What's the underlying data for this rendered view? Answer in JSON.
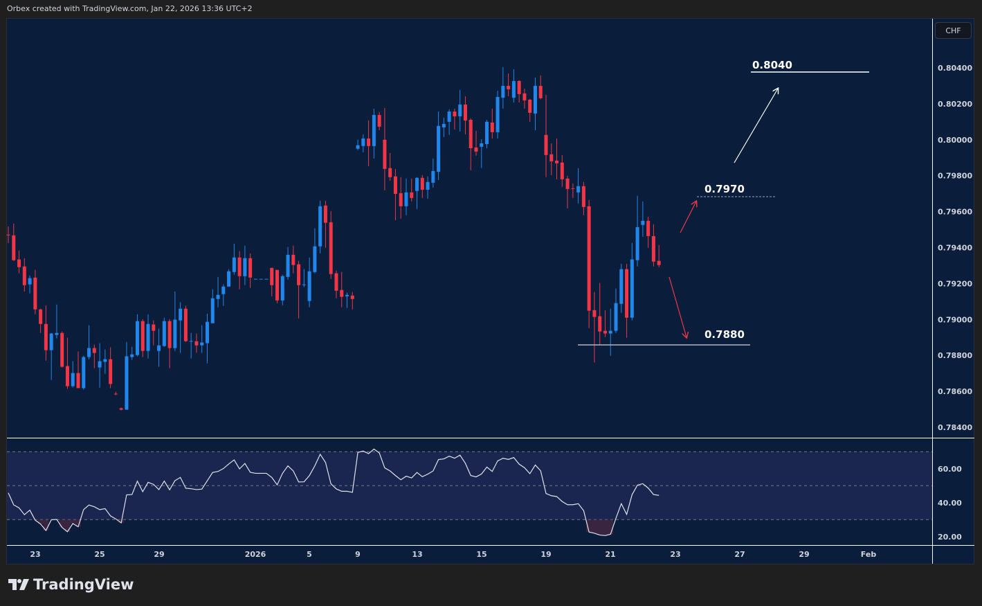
{
  "header": {
    "credit": "Orbex created with TradingView.com, Jan 22, 2026 13:36 UTC+2"
  },
  "currency_badge": "CHF",
  "logo": {
    "text": "TradingView"
  },
  "colors": {
    "up": "#2187ec",
    "down": "#f23645",
    "background": "#0a1e3b",
    "rsi_line": "#e0e3eb",
    "rsi_band": "#1a2650"
  },
  "chart_data": [
    {
      "type": "candlestick",
      "yaxis_ticks": [
        "0.80400",
        "0.80200",
        "0.80000",
        "0.79800",
        "0.79600",
        "0.79400",
        "0.79200",
        "0.79000",
        "0.78800",
        "0.78600",
        "0.78400"
      ],
      "ylim": [
        0.7834,
        0.8062
      ],
      "xaxis_ticks": [
        "23",
        "25",
        "29",
        "2026",
        "5",
        "9",
        "13",
        "15",
        "19",
        "21",
        "23",
        "27",
        "29",
        "Feb"
      ],
      "candles_ohlc": [
        [
          0.79472,
          0.79518,
          0.79426,
          0.7947
        ],
        [
          0.79468,
          0.79534,
          0.79326,
          0.7933
        ],
        [
          0.79334,
          0.79384,
          0.79257,
          0.79291
        ],
        [
          0.79295,
          0.79341,
          0.79156,
          0.79191
        ],
        [
          0.79195,
          0.79245,
          0.79145,
          0.7923
        ],
        [
          0.79233,
          0.79276,
          0.79029,
          0.79056
        ],
        [
          0.79056,
          0.7906,
          0.78925,
          0.78975
        ],
        [
          0.78975,
          0.79079,
          0.78771,
          0.78829
        ],
        [
          0.78829,
          0.78925,
          0.78664,
          0.78922
        ],
        [
          0.78914,
          0.79083,
          0.78895,
          0.78925
        ],
        [
          0.78925,
          0.78933,
          0.78733,
          0.78737
        ],
        [
          0.78741,
          0.78899,
          0.78614,
          0.78629
        ],
        [
          0.78629,
          0.78768,
          0.78621,
          0.78702
        ],
        [
          0.78702,
          0.78822,
          0.78618,
          0.78618
        ],
        [
          0.78618,
          0.78798,
          0.7861,
          0.78791
        ],
        [
          0.78791,
          0.78968,
          0.78779,
          0.78841
        ],
        [
          0.78841,
          0.7886,
          0.78729,
          0.78814
        ],
        [
          0.78733,
          0.78868,
          0.78621,
          0.78768
        ],
        [
          0.78764,
          0.78833,
          0.78698,
          0.78779
        ],
        [
          0.78779,
          0.78845,
          0.78618,
          0.78641
        ],
        [
          0.78587,
          0.78598,
          0.78579,
          0.78585
        ],
        [
          0.78506,
          0.7851,
          0.78494,
          0.78498
        ],
        [
          0.78498,
          0.78875,
          0.78498,
          0.78795
        ],
        [
          0.78791,
          0.78848,
          0.78775,
          0.78806
        ],
        [
          0.78802,
          0.79029,
          0.78795,
          0.78991
        ],
        [
          0.78991,
          0.79002,
          0.78791,
          0.78825
        ],
        [
          0.78825,
          0.79029,
          0.78783,
          0.78975
        ],
        [
          0.78972,
          0.78995,
          0.78856,
          0.78937
        ],
        [
          0.78825,
          0.78949,
          0.78737,
          0.78856
        ],
        [
          0.78852,
          0.7901,
          0.78848,
          0.78991
        ],
        [
          0.78991,
          0.79002,
          0.78729,
          0.78841
        ],
        [
          0.78841,
          0.79156,
          0.78825,
          0.78999
        ],
        [
          0.78995,
          0.79095,
          0.78814,
          0.7906
        ],
        [
          0.7906,
          0.79076,
          0.78875,
          0.78879
        ],
        [
          0.78879,
          0.78925,
          0.78783,
          0.78881
        ],
        [
          0.78879,
          0.78922,
          0.78814,
          0.78856
        ],
        [
          0.78856,
          0.78968,
          0.78814,
          0.78872
        ],
        [
          0.78868,
          0.79033,
          0.78756,
          0.78987
        ],
        [
          0.78979,
          0.79168,
          0.78979,
          0.79118
        ],
        [
          0.79114,
          0.79237,
          0.79068,
          0.79137
        ],
        [
          0.79141,
          0.79195,
          0.79076,
          0.79183
        ],
        [
          0.79183,
          0.7928,
          0.79183,
          0.79268
        ],
        [
          0.79264,
          0.79422,
          0.79249,
          0.79345
        ],
        [
          0.79345,
          0.7938,
          0.79168,
          0.79241
        ],
        [
          0.79241,
          0.79411,
          0.79191,
          0.79341
        ],
        [
          0.79341,
          0.79368,
          0.79176,
          0.79233
        ],
        [
          0.79226,
          0.79226,
          0.79226,
          0.79226
        ],
        [
          0.79226,
          0.79226,
          0.79226,
          0.79226
        ],
        [
          0.79226,
          0.79226,
          0.79226,
          0.79226
        ],
        [
          0.79287,
          0.79287,
          0.79129,
          0.79191
        ],
        [
          0.79276,
          0.79276,
          0.79091,
          0.79106
        ],
        [
          0.79106,
          0.79249,
          0.79079,
          0.79241
        ],
        [
          0.79237,
          0.79403,
          0.79222,
          0.7936
        ],
        [
          0.7936,
          0.79411,
          0.79257,
          0.79303
        ],
        [
          0.79307,
          0.79326,
          0.79006,
          0.79191
        ],
        [
          0.79191,
          0.7928,
          0.7918,
          0.79195
        ],
        [
          0.79103,
          0.79345,
          0.79068,
          0.79268
        ],
        [
          0.79264,
          0.79507,
          0.79257,
          0.79407
        ],
        [
          0.79407,
          0.79661,
          0.79368,
          0.7963
        ],
        [
          0.79634,
          0.79661,
          0.79399,
          0.79538
        ],
        [
          0.79541,
          0.79603,
          0.79226,
          0.79253
        ],
        [
          0.79257,
          0.79272,
          0.79118,
          0.7916
        ],
        [
          0.79164,
          0.79264,
          0.79068,
          0.79126
        ],
        [
          0.79129,
          0.79149,
          0.79064,
          0.79137
        ],
        [
          0.79133,
          0.79153,
          0.79056,
          0.79114
        ],
        [
          0.7995,
          0.8,
          0.79942,
          0.79969
        ],
        [
          0.79965,
          0.8003,
          0.7993,
          0.80007
        ],
        [
          0.80007,
          0.80107,
          0.79853,
          0.79965
        ],
        [
          0.79965,
          0.80173,
          0.79896,
          0.80138
        ],
        [
          0.80138,
          0.80154,
          0.80053,
          0.80073
        ],
        [
          0.8,
          0.80177,
          0.79719,
          0.79838
        ],
        [
          0.79842,
          0.79926,
          0.79772,
          0.79792
        ],
        [
          0.79796,
          0.79838,
          0.79553,
          0.79699
        ],
        [
          0.79703,
          0.79792,
          0.79561,
          0.7963
        ],
        [
          0.7963,
          0.79784,
          0.7958,
          0.79707
        ],
        [
          0.79707,
          0.79784,
          0.79657,
          0.79676
        ],
        [
          0.79715,
          0.79792,
          0.79615,
          0.79788
        ],
        [
          0.79788,
          0.79803,
          0.79676,
          0.79722
        ],
        [
          0.79722,
          0.79796,
          0.79672,
          0.79765
        ],
        [
          0.79761,
          0.79896,
          0.79734,
          0.79826
        ],
        [
          0.79822,
          0.80157,
          0.79776,
          0.80077
        ],
        [
          0.80069,
          0.80123,
          0.80015,
          0.80088
        ],
        [
          0.801,
          0.80169,
          0.80027,
          0.80157
        ],
        [
          0.80157,
          0.80173,
          0.80057,
          0.8013
        ],
        [
          0.8013,
          0.80277,
          0.80046,
          0.80196
        ],
        [
          0.80196,
          0.80242,
          0.8003,
          0.80107
        ],
        [
          0.80111,
          0.80119,
          0.7983,
          0.79953
        ],
        [
          0.79957,
          0.8005,
          0.79911,
          0.79934
        ],
        [
          0.79961,
          0.80003,
          0.79842,
          0.7998
        ],
        [
          0.79976,
          0.80111,
          0.79953,
          0.801
        ],
        [
          0.80096,
          0.80173,
          0.80007,
          0.80042
        ],
        [
          0.80042,
          0.80273,
          0.80007,
          0.80238
        ],
        [
          0.80234,
          0.80404,
          0.80173,
          0.803
        ],
        [
          0.803,
          0.80369,
          0.80242,
          0.80281
        ],
        [
          0.80234,
          0.80392,
          0.80207,
          0.80327
        ],
        [
          0.80327,
          0.80331,
          0.80207,
          0.80254
        ],
        [
          0.80258,
          0.80284,
          0.80173,
          0.80219
        ],
        [
          0.80223,
          0.80227,
          0.801,
          0.8015
        ],
        [
          0.80146,
          0.80346,
          0.80053,
          0.803
        ],
        [
          0.803,
          0.80358,
          0.80225,
          0.80231
        ],
        [
          0.80027,
          0.8025,
          0.79792,
          0.79915
        ],
        [
          0.79919,
          0.7998,
          0.79803,
          0.7988
        ],
        [
          0.79884,
          0.80007,
          0.7978,
          0.79869
        ],
        [
          0.79873,
          0.79915,
          0.79738,
          0.7978
        ],
        [
          0.79784,
          0.79799,
          0.79618,
          0.79726
        ],
        [
          0.7973,
          0.79757,
          0.79676,
          0.79728
        ],
        [
          0.79707,
          0.79842,
          0.79645,
          0.79742
        ],
        [
          0.79742,
          0.79765,
          0.7958,
          0.79626
        ],
        [
          0.7963,
          0.79665,
          0.78952,
          0.79049
        ],
        [
          0.79052,
          0.79153,
          0.7876,
          0.79014
        ],
        [
          0.79018,
          0.79203,
          0.78856,
          0.78933
        ],
        [
          0.78937,
          0.79052,
          0.78902,
          0.78922
        ],
        [
          0.78922,
          0.7906,
          0.78798,
          0.78937
        ],
        [
          0.78937,
          0.79172,
          0.78925,
          0.79091
        ],
        [
          0.79087,
          0.7931,
          0.79037,
          0.7928
        ],
        [
          0.7928,
          0.7931,
          0.78899,
          0.7901
        ],
        [
          0.7901,
          0.79426,
          0.78995,
          0.79334
        ],
        [
          0.7933,
          0.79688,
          0.79295,
          0.79514
        ],
        [
          0.79526,
          0.79657,
          0.79461,
          0.79549
        ],
        [
          0.79549,
          0.79572,
          0.79399,
          0.79464
        ],
        [
          0.79464,
          0.7953,
          0.79295,
          0.79322
        ],
        [
          0.79326,
          0.79414,
          0.79291,
          0.79303
        ]
      ],
      "annotations": [
        {
          "label": "0.8040",
          "style": "solid",
          "color": "#ffffff"
        },
        {
          "label": "0.7970",
          "style": "dashed",
          "color": "#9aa4b8"
        },
        {
          "label": "0.7880",
          "style": "solid",
          "color": "#b2b5be"
        }
      ],
      "arrows": [
        {
          "direction": "up",
          "color": "#ffffff"
        },
        {
          "direction": "up",
          "color": "#f23645"
        },
        {
          "direction": "down",
          "color": "#f23645"
        }
      ]
    },
    {
      "type": "line",
      "yaxis_ticks": [
        "60.00",
        "40.00",
        "20.00"
      ],
      "ylim": [
        15,
        80
      ],
      "bands": [
        30,
        50,
        70
      ],
      "values": [
        45.8,
        38.7,
        36.9,
        32.9,
        35.6,
        29.7,
        27.4,
        23.6,
        29.9,
        30.1,
        25.4,
        22.9,
        27.7,
        25.8,
        35.9,
        38.6,
        37.6,
        35.9,
        36.5,
        32.2,
        30.4,
        28.1,
        44.6,
        44.8,
        52.7,
        46.5,
        52.0,
        50.8,
        47.7,
        52.7,
        47.6,
        53.0,
        54.9,
        48.5,
        48.2,
        47.7,
        48.0,
        52.9,
        57.8,
        58.4,
        60.1,
        62.8,
        65.2,
        59.9,
        63.1,
        57.9,
        57.3,
        57.3,
        57.3,
        54.9,
        50.5,
        57.3,
        61.7,
        58.7,
        52.2,
        52.3,
        56.0,
        61.7,
        68.5,
        63.7,
        51.1,
        48.1,
        46.7,
        46.7,
        46.1,
        69.6,
        70.4,
        68.9,
        71.6,
        69.3,
        60.5,
        58.7,
        56.0,
        53.5,
        55.6,
        54.6,
        57.8,
        55.3,
        56.8,
        58.7,
        65.4,
        65.8,
        67.4,
        66.2,
        68.0,
        63.2,
        56.0,
        55.2,
        56.9,
        61.0,
        58.4,
        64.6,
        66.2,
        65.5,
        66.6,
        62.7,
        60.6,
        57.1,
        62.2,
        58.8,
        45.4,
        44.1,
        43.6,
        40.7,
        38.8,
        38.8,
        39.4,
        35.3,
        22.7,
        22.0,
        20.9,
        20.6,
        21.4,
        30.8,
        39.4,
        33.1,
        44.7,
        50.3,
        51.2,
        48.6,
        44.8,
        44.3
      ]
    }
  ]
}
